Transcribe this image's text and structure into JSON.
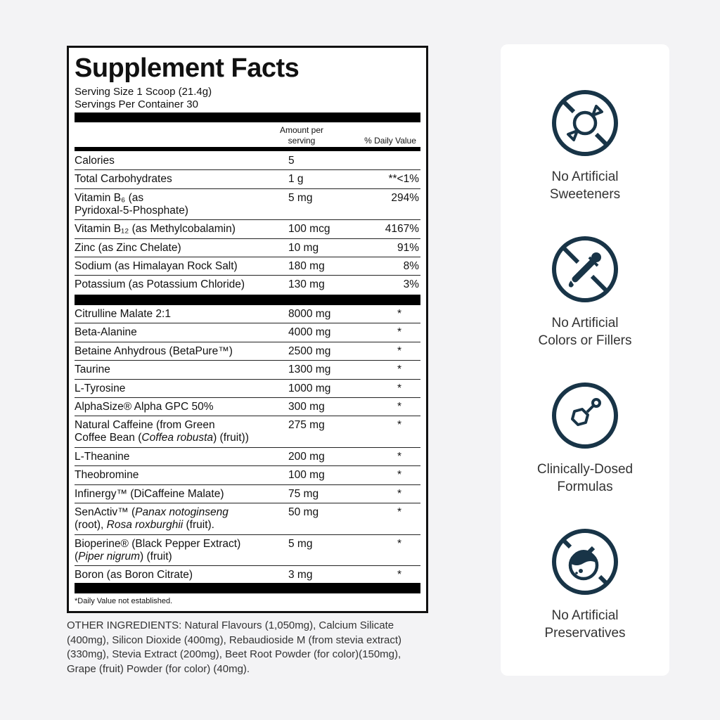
{
  "label": {
    "title": "Supplement Facts",
    "serving_size": "Serving Size 1 Scoop (21.4g)",
    "servings_per_container": "Servings Per Container 30",
    "col_amount": "Amount per\nserving",
    "col_dv": "% Daily Value",
    "section1": [
      {
        "name": [
          {
            "t": "Calories"
          }
        ],
        "amount": "5",
        "dv": ""
      },
      {
        "name": [
          {
            "t": "Total Carbohydrates"
          }
        ],
        "amount": "1 g",
        "dv": "**<1%"
      },
      {
        "name": [
          {
            "t": "Vitamin B₆ (as\nPyridoxal-5-Phosphate)"
          }
        ],
        "amount": "5 mg",
        "dv": "294%"
      },
      {
        "name": [
          {
            "t": "Vitamin B₁₂ (as Methylcobalamin)"
          }
        ],
        "amount": "100 mcg",
        "dv": "4167%"
      },
      {
        "name": [
          {
            "t": "Zinc (as Zinc Chelate)"
          }
        ],
        "amount": "10 mg",
        "dv": "91%"
      },
      {
        "name": [
          {
            "t": "Sodium (as Himalayan Rock Salt)"
          }
        ],
        "amount": "180 mg",
        "dv": "8%"
      },
      {
        "name": [
          {
            "t": "Potassium (as Potassium Chloride)"
          }
        ],
        "amount": "130 mg",
        "dv": "3%"
      }
    ],
    "section2": [
      {
        "name": [
          {
            "t": "Citrulline Malate 2:1"
          }
        ],
        "amount": "8000 mg",
        "dv": "*"
      },
      {
        "name": [
          {
            "t": "Beta-Alanine"
          }
        ],
        "amount": "4000 mg",
        "dv": "*"
      },
      {
        "name": [
          {
            "t": "Betaine Anhydrous (BetaPure™)"
          }
        ],
        "amount": "2500 mg",
        "dv": "*"
      },
      {
        "name": [
          {
            "t": "Taurine"
          }
        ],
        "amount": "1300 mg",
        "dv": "*"
      },
      {
        "name": [
          {
            "t": "L-Tyrosine"
          }
        ],
        "amount": "1000 mg",
        "dv": "*"
      },
      {
        "name": [
          {
            "t": "AlphaSize® Alpha GPC 50%"
          }
        ],
        "amount": "300 mg",
        "dv": "*"
      },
      {
        "name": [
          {
            "t": "Natural Caffeine (from Green\nCoffee Bean ("
          },
          {
            "t": "Coffea robusta",
            "i": true
          },
          {
            "t": ") (fruit))"
          }
        ],
        "amount": "275 mg",
        "dv": "*"
      },
      {
        "name": [
          {
            "t": "L-Theanine"
          }
        ],
        "amount": "200 mg",
        "dv": "*"
      },
      {
        "name": [
          {
            "t": "Theobromine"
          }
        ],
        "amount": "100 mg",
        "dv": "*"
      },
      {
        "name": [
          {
            "t": "Infinergy™ (DiCaffeine Malate)"
          }
        ],
        "amount": "75 mg",
        "dv": "*"
      },
      {
        "name": [
          {
            "t": "SenActiv™ ("
          },
          {
            "t": "Panax notoginseng",
            "i": true
          },
          {
            "t": "\n(root), "
          },
          {
            "t": "Rosa roxburghii",
            "i": true
          },
          {
            "t": " (fruit)."
          }
        ],
        "amount": "50 mg",
        "dv": "*"
      },
      {
        "name": [
          {
            "t": "Bioperine® (Black Pepper Extract)\n("
          },
          {
            "t": "Piper nigrum",
            "i": true
          },
          {
            "t": ") (fruit)"
          }
        ],
        "amount": "5 mg",
        "dv": "*"
      },
      {
        "name": [
          {
            "t": "Boron (as Boron Citrate)"
          }
        ],
        "amount": "3 mg",
        "dv": "*"
      }
    ],
    "footnote": "*Daily Value not established."
  },
  "other_ingredients": "OTHER INGREDIENTS: Natural Flavours (1,050mg), Calcium Silicate (400mg), Silicon Dioxide (400mg), Rebaudioside M (from stevia extract) (330mg), Stevia Extract (200mg), Beet Root Powder (for color)(150mg), Grape (fruit) Powder (for color) (40mg).",
  "features": [
    {
      "icon": "no-candy-icon",
      "text": "No Artificial\nSweeteners"
    },
    {
      "icon": "no-dropper-icon",
      "text": "No Artificial\nColors or Fillers"
    },
    {
      "icon": "molecule-icon",
      "text": "Clinically-Dosed\nFormulas"
    },
    {
      "icon": "no-flask-icon",
      "text": "No Artificial\nPreservatives"
    }
  ],
  "colors": {
    "icon": "#183447",
    "page_bg": "#f3f3f5"
  }
}
